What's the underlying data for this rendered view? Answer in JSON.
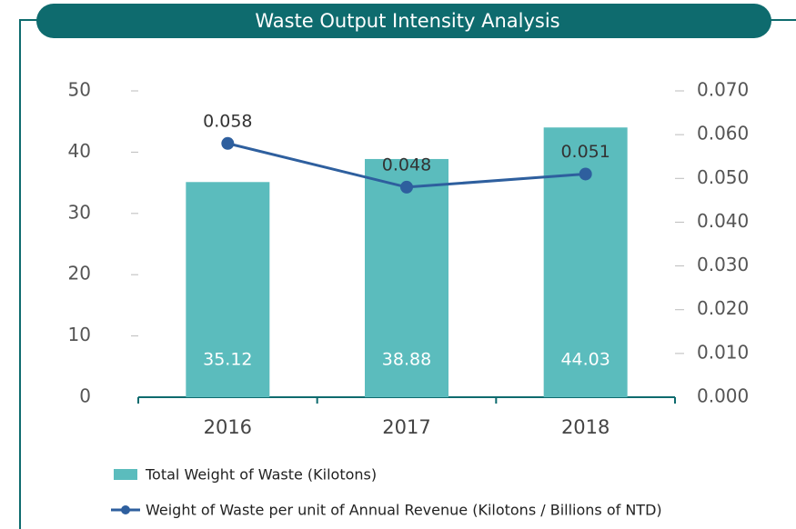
{
  "chart_data": {
    "type": "bar_line",
    "title": "Waste Output Intensity Analysis",
    "categories": [
      "2016",
      "2017",
      "2018"
    ],
    "series": [
      {
        "name": "Total Weight of Waste (Kilotons)",
        "color": "#5bbcbd",
        "values": [
          35.12,
          38.88,
          44.03
        ]
      },
      {
        "name": "Weight of Waste per unit of Annual Revenue (Kilotons / Billions of NTD)",
        "color": "#2e5f9e",
        "values": [
          0.058,
          0.048,
          0.051
        ],
        "axis": "y2"
      }
    ],
    "ylim": [
      0,
      50
    ],
    "yticks": [
      0,
      10,
      20,
      30,
      40,
      50
    ],
    "y2lim": [
      0,
      0.07
    ],
    "y2ticks": [
      {
        "value": 0,
        "label": "0.000"
      },
      {
        "value": 0.01,
        "label": "0.010"
      },
      {
        "value": 0.02,
        "label": "0.020"
      },
      {
        "value": 0.03,
        "label": "0.030"
      },
      {
        "value": 0.04,
        "label": "0.040"
      },
      {
        "value": 0.05,
        "label": "0.050"
      },
      {
        "value": 0.06,
        "label": "0.060"
      },
      {
        "value": 0.07,
        "label": "0.070"
      }
    ]
  }
}
